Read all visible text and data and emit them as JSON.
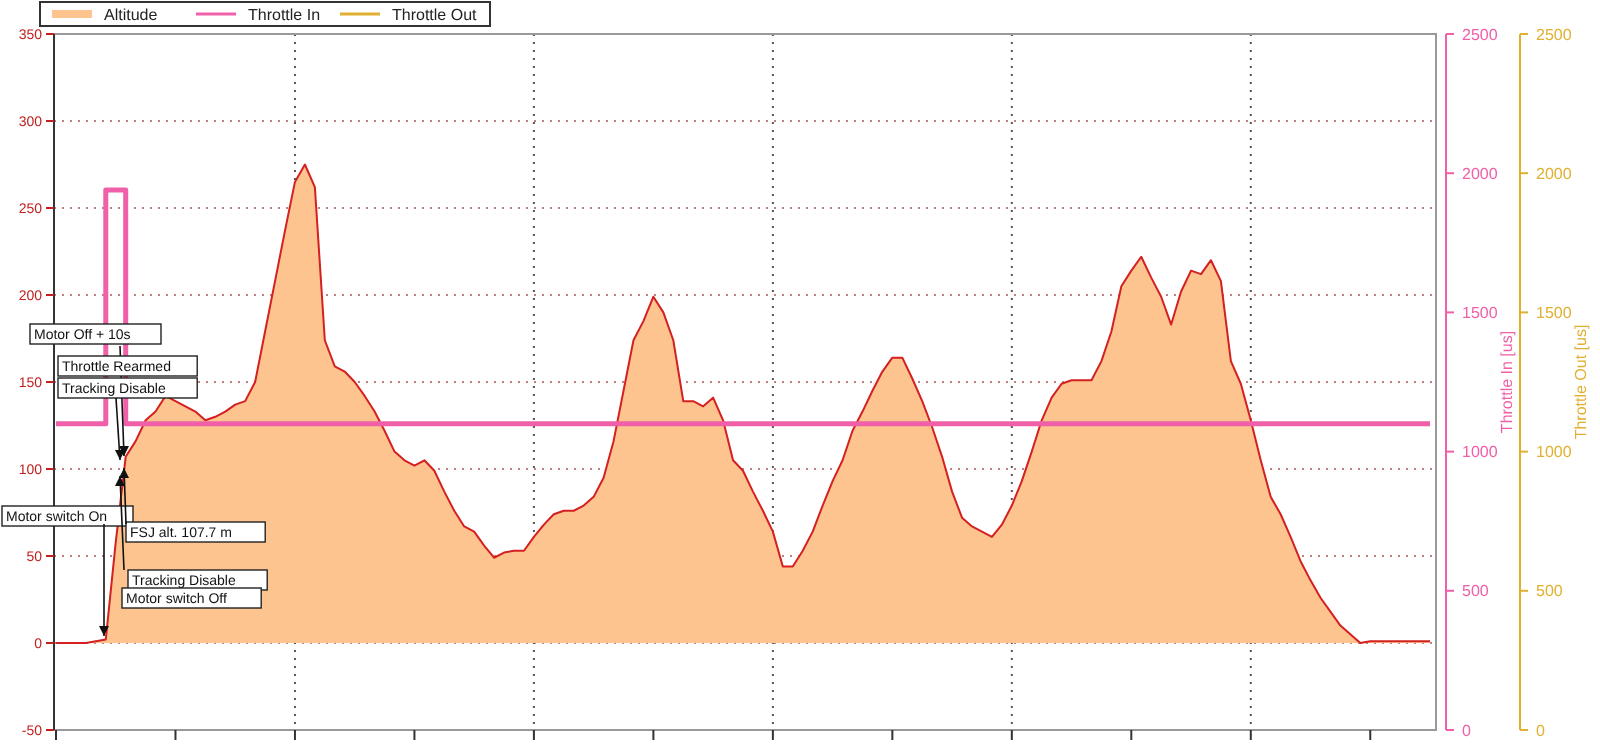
{
  "chart_data": {
    "type": "area",
    "y2label": "Throttle In [us]",
    "y3label": "Throttle Out [us]",
    "categories": [
      null,
      null,
      null,
      null,
      null,
      null,
      null,
      null,
      null,
      null,
      null,
      null,
      null,
      null,
      null,
      null,
      null,
      null,
      null,
      null,
      null,
      null,
      null,
      null,
      null,
      null,
      null,
      null,
      null,
      null,
      null,
      null,
      null,
      null,
      null,
      null,
      null,
      null,
      null,
      null,
      null,
      null,
      null,
      null,
      null,
      null,
      null,
      null,
      null,
      null,
      null,
      null,
      null,
      null,
      null,
      null,
      null,
      null,
      null,
      null,
      null,
      null,
      null,
      null,
      null,
      null,
      null,
      null,
      null,
      null,
      null,
      null,
      null,
      null,
      null,
      null,
      null,
      null,
      null,
      null,
      null,
      null,
      null,
      null,
      null,
      null,
      null,
      null,
      null,
      null,
      null,
      null,
      null,
      null,
      null,
      null,
      null,
      null,
      null,
      null,
      null,
      null,
      null,
      null,
      null,
      null,
      null,
      null,
      null,
      null,
      null,
      null,
      null,
      null,
      null,
      null,
      null,
      null,
      null,
      null,
      null,
      null,
      null,
      null,
      null,
      null,
      null,
      null,
      null,
      null,
      null,
      null,
      null,
      null,
      null,
      null,
      null,
      null,
      null
    ],
    "series": [
      {
        "name": "Altitude",
        "color": "#fdc48f",
        "values": [
          0,
          0,
          0,
          0,
          1,
          2,
          58,
          107,
          116,
          128,
          133,
          142,
          139,
          136,
          133,
          128,
          130,
          133,
          137,
          139,
          150,
          179,
          208,
          237,
          265,
          275,
          262,
          174,
          159,
          156,
          150,
          142,
          133,
          122,
          110,
          105,
          102,
          105,
          99,
          87,
          76,
          67,
          64,
          56,
          49,
          52,
          53,
          53,
          61,
          68,
          74,
          76,
          76,
          79,
          84,
          95,
          116,
          145,
          174,
          185,
          199,
          190,
          174,
          139,
          139,
          136,
          141,
          128,
          105,
          99,
          87,
          76,
          64,
          44,
          44,
          53,
          64,
          79,
          93,
          105,
          122,
          133,
          145,
          156,
          164,
          164,
          152,
          139,
          124,
          107,
          87,
          72,
          67,
          64,
          61,
          68,
          79,
          93,
          110,
          128,
          141,
          149,
          151,
          151,
          151,
          162,
          179,
          205,
          214,
          222,
          210,
          199,
          183,
          202,
          214,
          212,
          220,
          208,
          162,
          149,
          128,
          105,
          84,
          74,
          61,
          47,
          36,
          26,
          18,
          10,
          5,
          0,
          1,
          1,
          1,
          1,
          1,
          1,
          1
        ]
      },
      {
        "name": "Throttle In",
        "type": "step",
        "axis": "y2",
        "color": "#f060a8",
        "values": [
          1100,
          1100,
          1100,
          1100,
          1100,
          1940,
          1940,
          1100,
          1100,
          1100,
          1100,
          1100,
          1100,
          1100,
          1100,
          1100,
          1100,
          1100,
          1100,
          1100,
          1100,
          1100,
          1100,
          1100,
          1100,
          1100,
          1100,
          1100,
          1100,
          1100,
          1100,
          1100,
          1100,
          1100,
          1100,
          1100,
          1100,
          1100,
          1100,
          1100,
          1100,
          1100,
          1100,
          1100,
          1100,
          1100,
          1100,
          1100,
          1100,
          1100,
          1100,
          1100,
          1100,
          1100,
          1100,
          1100,
          1100,
          1100,
          1100,
          1100,
          1100,
          1100,
          1100,
          1100,
          1100,
          1100,
          1100,
          1100,
          1100,
          1100,
          1100,
          1100,
          1100,
          1100,
          1100,
          1100,
          1100,
          1100,
          1100,
          1100,
          1100,
          1100,
          1100,
          1100,
          1100,
          1100,
          1100,
          1100,
          1100,
          1100,
          1100,
          1100,
          1100,
          1100,
          1100,
          1100,
          1100,
          1100,
          1100,
          1100,
          1100,
          1100,
          1100,
          1100,
          1100,
          1100,
          1100,
          1100,
          1100,
          1100,
          1100,
          1100,
          1100,
          1100,
          1100,
          1100,
          1100,
          1100,
          1100,
          1100,
          1100,
          1100,
          1100,
          1100,
          1100,
          1100,
          1100,
          1100,
          1100,
          1100,
          1100,
          1100,
          1100,
          1100,
          1100,
          1100,
          1100,
          1100,
          1100
        ]
      },
      {
        "name": "Throttle Out",
        "type": "line",
        "axis": "y3",
        "color": "#e0b030",
        "values": [
          null,
          null,
          null,
          null,
          null,
          null,
          null,
          null,
          null,
          null,
          null,
          null,
          null,
          null,
          null,
          null,
          null,
          null,
          null,
          null,
          null,
          null,
          null,
          null,
          null,
          null,
          null,
          null,
          null,
          null,
          null,
          null,
          null,
          null,
          null,
          null,
          null,
          null,
          null,
          null,
          null,
          null,
          null,
          null,
          null,
          null,
          null,
          null,
          null,
          null,
          null,
          null,
          null,
          null,
          null,
          null,
          null,
          null,
          null,
          null,
          null,
          null,
          null,
          null,
          null,
          null,
          null,
          null,
          null,
          null,
          null,
          null,
          null,
          null,
          null,
          null,
          null,
          null,
          null,
          null,
          null,
          null,
          null,
          null,
          null,
          null,
          null,
          null,
          null,
          null,
          null,
          null,
          null,
          null,
          null,
          null,
          null,
          null,
          null,
          null,
          null,
          null,
          null,
          null,
          null,
          null,
          null,
          null,
          null,
          null,
          null,
          null,
          null,
          null,
          null,
          null,
          null,
          null,
          null,
          null,
          null,
          null,
          null,
          null,
          null,
          null,
          null,
          null,
          null,
          null,
          null,
          null,
          null,
          null,
          null,
          null,
          null,
          null,
          null
        ]
      }
    ],
    "ylim": [
      -50,
      350
    ],
    "yticks": [
      -50,
      0,
      50,
      100,
      150,
      200,
      250,
      300,
      350
    ],
    "y2lim": [
      0,
      2500
    ],
    "y2ticks": [
      0,
      500,
      1000,
      1500,
      2000,
      2500
    ],
    "y3lim": [
      0,
      2500
    ],
    "y3ticks": [
      0,
      500,
      1000,
      1500,
      2000,
      2500
    ],
    "grid": true,
    "legend": "top left",
    "annotations": [
      "Motor Off + 10s",
      "Throttle Rearmed",
      "Tracking Disable",
      "Motor switch On",
      "FSJ alt. 107.7 m",
      "Tracking Disable",
      "Motor switch Off"
    ]
  }
}
